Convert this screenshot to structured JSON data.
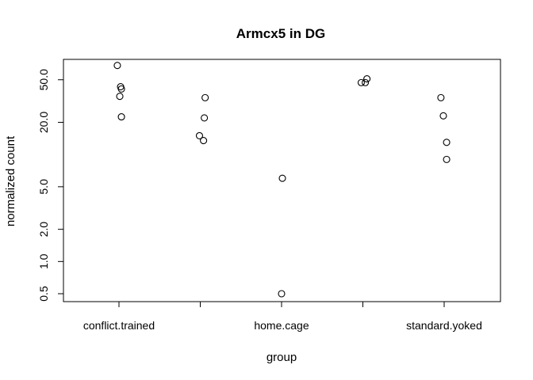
{
  "chart_data": {
    "type": "scatter",
    "title": "Armcx5 in DG",
    "xlabel": "group",
    "ylabel": "normalized count",
    "y_scale": "log",
    "ylim": [
      0.45,
      100
    ],
    "positions": [
      1,
      2,
      3,
      4,
      5
    ],
    "x_tick_labels": [
      "conflict.trained",
      "",
      "home.cage",
      "",
      "standard.yoked"
    ],
    "y_ticks": [
      0.5,
      1.0,
      2.0,
      5.0,
      20.0,
      50.0
    ],
    "y_tick_labels": [
      "0.5",
      "1.0",
      "2.0",
      "5.0",
      "20.0",
      "50.0"
    ],
    "series": [
      {
        "group": 1,
        "x": [
          0.98,
          1.02,
          1.03,
          1.01,
          1.03
        ],
        "values": [
          68,
          43,
          41,
          35,
          22.5
        ]
      },
      {
        "group": 2,
        "x": [
          2.06,
          2.05,
          1.99,
          2.04
        ],
        "values": [
          34,
          22,
          15,
          13.5
        ]
      },
      {
        "group": 3,
        "x": [
          3.01,
          3.0
        ],
        "values": [
          6.0,
          0.5
        ]
      },
      {
        "group": 4,
        "x": [
          3.98,
          4.03,
          4.05
        ],
        "values": [
          47,
          47,
          51
        ]
      },
      {
        "group": 5,
        "x": [
          4.96,
          4.99,
          5.03,
          5.03
        ],
        "values": [
          34,
          23,
          13,
          9
        ]
      }
    ],
    "grid": false,
    "legend": "none"
  }
}
